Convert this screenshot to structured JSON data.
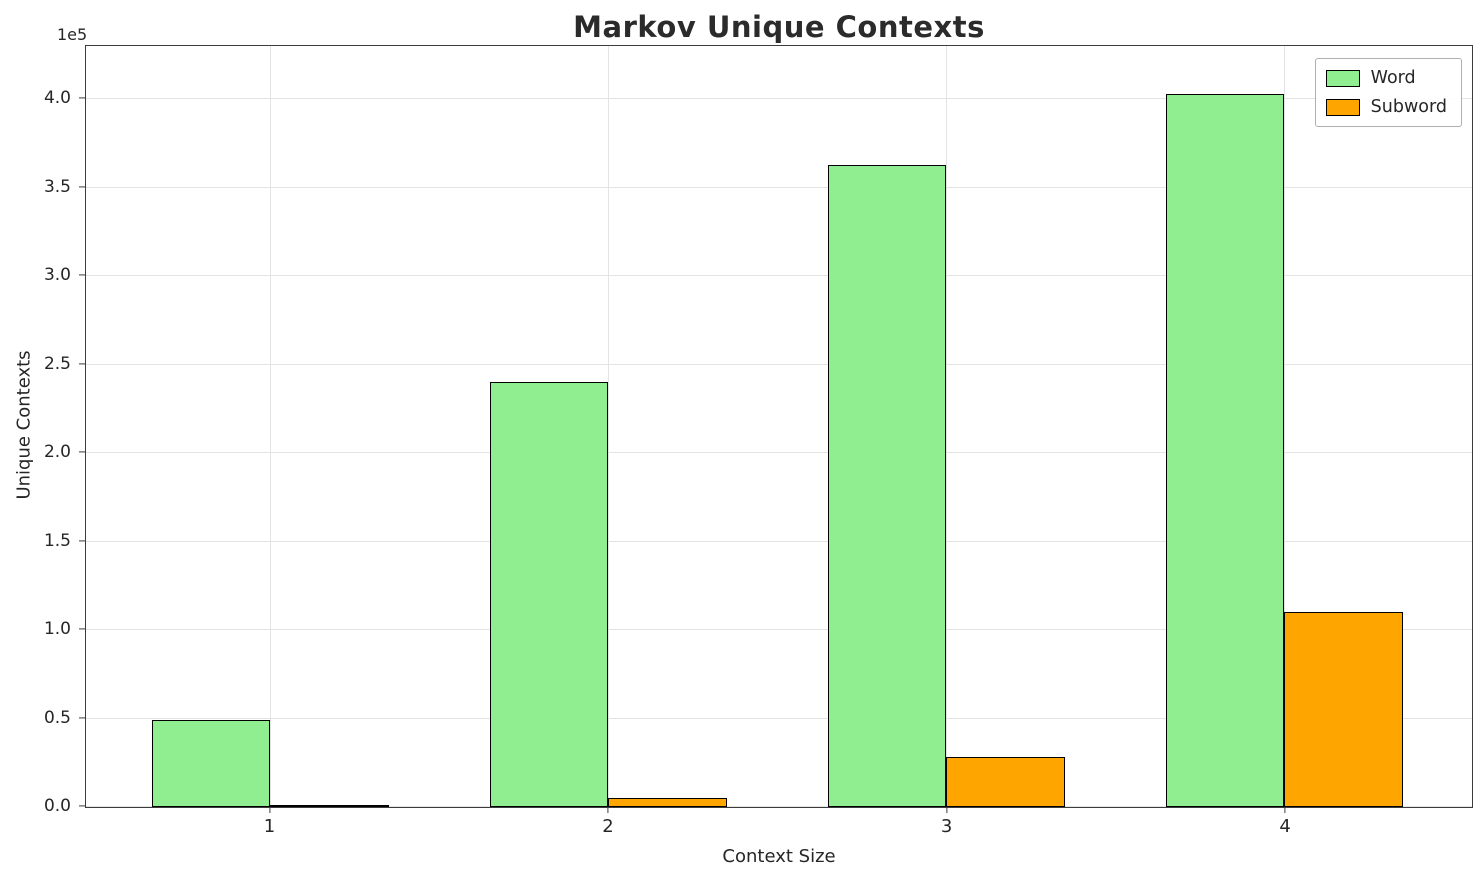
{
  "chart_data": {
    "type": "bar",
    "title": "Markov Unique Contexts",
    "xlabel": "Context Size",
    "ylabel": "Unique Contexts",
    "y_offset_text": "1e5",
    "categories": [
      "1",
      "2",
      "3",
      "4"
    ],
    "series": [
      {
        "name": "Word",
        "color": "#90EE90",
        "values": [
          49000,
          240000,
          363000,
          403000
        ]
      },
      {
        "name": "Subword",
        "color": "#FFA500",
        "values": [
          1000,
          5000,
          28000,
          110000
        ]
      }
    ],
    "y_ticks": [
      0,
      50000,
      100000,
      150000,
      200000,
      250000,
      300000,
      350000,
      400000
    ],
    "y_tick_labels": [
      "0.0",
      "0.5",
      "1.0",
      "1.5",
      "2.0",
      "2.5",
      "3.0",
      "3.5",
      "4.0"
    ],
    "ylim": [
      0,
      430000
    ],
    "grid": true,
    "legend_position": "upper right",
    "bar_edge_color": "#000000",
    "grid_color": "#e3e3e3"
  }
}
